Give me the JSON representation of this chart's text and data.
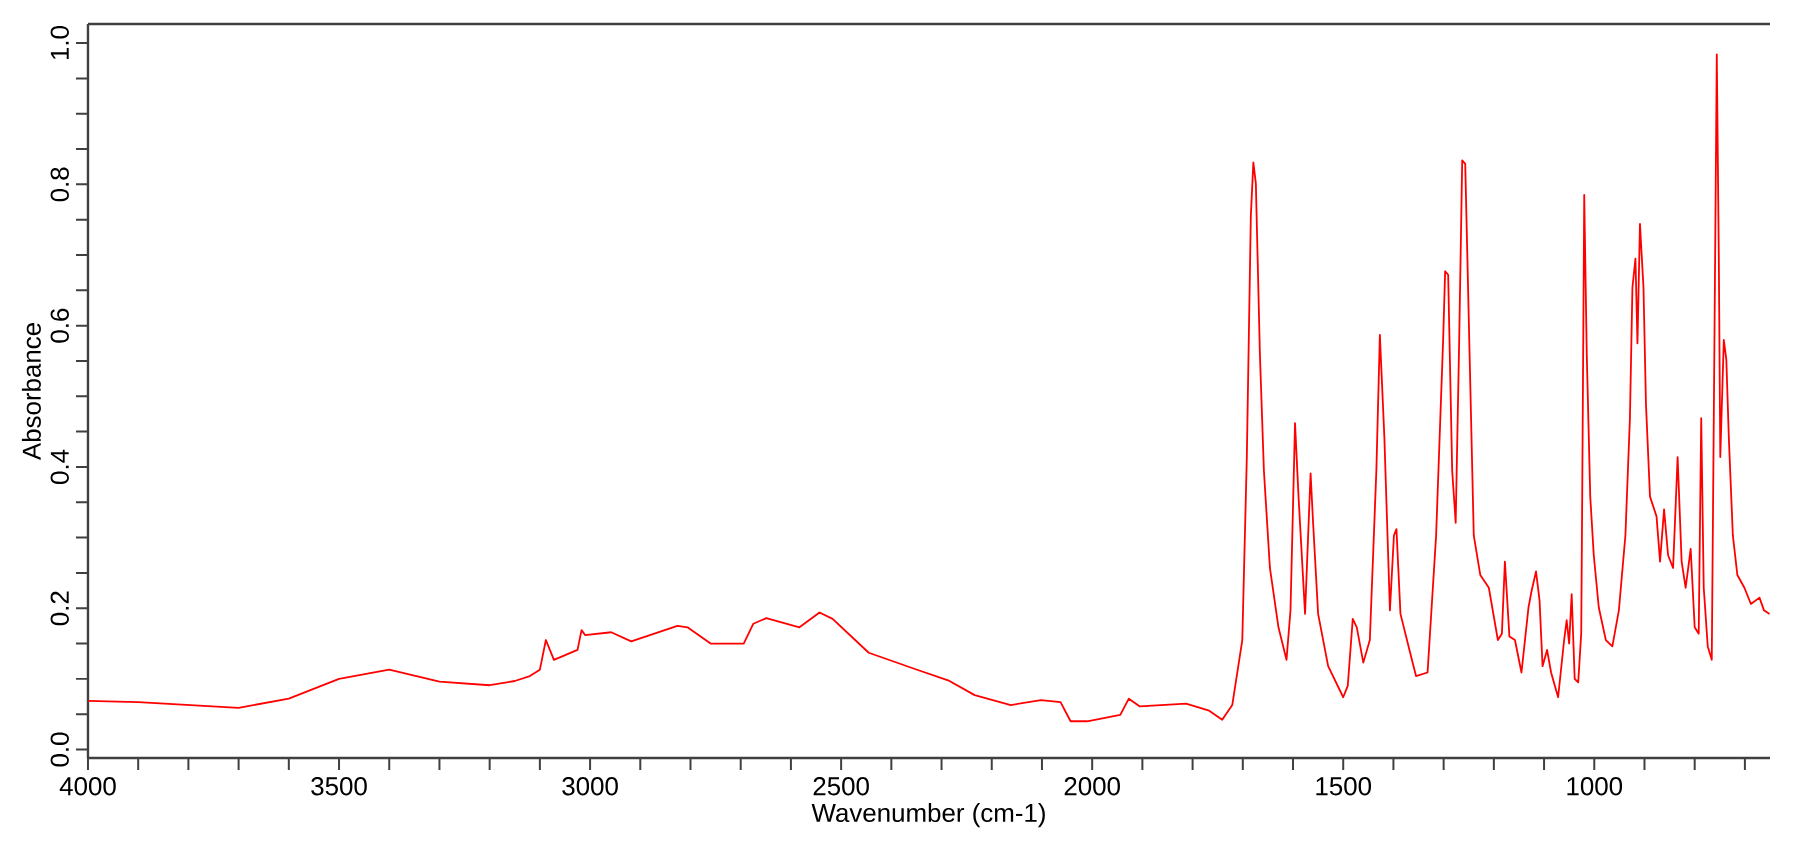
{
  "chart_data": {
    "type": "line",
    "xlabel": "Wavenumber (cm-1)",
    "ylabel": "Absorbance",
    "xlim": [
      4000,
      650
    ],
    "ylim": [
      -0.012,
      1.027
    ],
    "xticks": [
      4000,
      3500,
      3000,
      2500,
      2000,
      1500,
      1000,
      {
        "value": 3900,
        "label": null
      },
      {
        "value": 3800,
        "label": null
      },
      {
        "value": 3700,
        "label": null
      },
      {
        "value": 3600,
        "label": null
      },
      {
        "value": 3400,
        "label": null
      },
      {
        "value": 3300,
        "label": null
      },
      {
        "value": 3200,
        "label": null
      },
      {
        "value": 3100,
        "label": null
      },
      {
        "value": 2900,
        "label": null
      },
      {
        "value": 2800,
        "label": null
      },
      {
        "value": 2700,
        "label": null
      },
      {
        "value": 2600,
        "label": null
      },
      {
        "value": 2400,
        "label": null
      },
      {
        "value": 2300,
        "label": null
      },
      {
        "value": 2200,
        "label": null
      },
      {
        "value": 2100,
        "label": null
      },
      {
        "value": 1900,
        "label": null
      },
      {
        "value": 1800,
        "label": null
      },
      {
        "value": 1700,
        "label": null
      },
      {
        "value": 1600,
        "label": null
      },
      {
        "value": 1400,
        "label": null
      },
      {
        "value": 1300,
        "label": null
      },
      {
        "value": 1200,
        "label": null
      },
      {
        "value": 1100,
        "label": null
      },
      {
        "value": 900,
        "label": null
      },
      {
        "value": 800,
        "label": null
      },
      {
        "value": 700,
        "label": null
      }
    ],
    "yticks": [
      {
        "value": 0,
        "label": "0.0"
      },
      0.2,
      0.4,
      0.6,
      0.8,
      {
        "value": 1,
        "label": "1.0"
      },
      {
        "value": 0.1,
        "label": null
      },
      {
        "value": 0.3,
        "label": null
      },
      {
        "value": 0.5,
        "label": null
      },
      {
        "value": 0.7,
        "label": null
      },
      {
        "value": 0.9,
        "label": null
      },
      {
        "value": 0.05,
        "label": null
      },
      {
        "value": 0.15,
        "label": null
      },
      {
        "value": 0.25,
        "label": null
      },
      {
        "value": 0.35,
        "label": null
      },
      {
        "value": 0.45,
        "label": null
      },
      {
        "value": 0.55,
        "label": null
      },
      {
        "value": 0.65,
        "label": null
      },
      {
        "value": 0.75,
        "label": null
      },
      {
        "value": 0.85,
        "label": null
      },
      {
        "value": 0.95,
        "label": null
      }
    ],
    "grid": false,
    "marker": "none",
    "line_style": "solid",
    "x": [
      4000,
      3900,
      3800,
      3700,
      3600,
      3500,
      3400,
      3300,
      3200,
      3150,
      3120,
      3100,
      3088,
      3072,
      3025,
      3017,
      3010,
      2958,
      2918,
      2826,
      2806,
      2760,
      2694,
      2675,
      2649,
      2583,
      2543,
      2517,
      2445,
      2353,
      2287,
      2234,
      2162,
      2102,
      2063,
      2043,
      2010,
      1944,
      1927,
      1905,
      1813,
      1767,
      1741,
      1721,
      1701,
      1692,
      1684,
      1679,
      1674,
      1666,
      1658,
      1646,
      1629,
      1613,
      1605,
      1596,
      1589,
      1576,
      1565,
      1560,
      1550,
      1530,
      1500,
      1491,
      1481,
      1473,
      1460,
      1447,
      1434,
      1427,
      1418,
      1407,
      1399,
      1394,
      1386,
      1365,
      1355,
      1332,
      1315,
      1301,
      1297,
      1291,
      1283,
      1276,
      1269,
      1263,
      1257,
      1249,
      1240,
      1227,
      1210,
      1192,
      1184,
      1178,
      1169,
      1158,
      1145,
      1131,
      1125,
      1116,
      1109,
      1103,
      1094,
      1086,
      1072,
      1060,
      1055,
      1050,
      1045,
      1039,
      1032,
      1026,
      1024,
      1020,
      1015,
      1008,
      1001,
      991,
      977,
      964,
      951,
      938,
      929,
      924,
      918,
      914,
      909,
      902,
      897,
      889,
      876,
      869,
      861,
      853,
      843,
      834,
      826,
      818,
      808,
      800,
      792,
      787,
      782,
      774,
      766,
      760,
      756,
      752,
      749,
      742,
      737,
      732,
      724,
      715,
      701,
      688,
      671,
      662,
      651
    ],
    "series": [
      {
        "color": "#ff0000",
        "values": [
          0.069,
          0.067,
          0.063,
          0.059,
          0.072,
          0.1,
          0.113,
          0.096,
          0.091,
          0.097,
          0.104,
          0.113,
          0.155,
          0.127,
          0.141,
          0.169,
          0.162,
          0.166,
          0.153,
          0.175,
          0.173,
          0.15,
          0.15,
          0.178,
          0.186,
          0.173,
          0.194,
          0.185,
          0.137,
          0.114,
          0.098,
          0.077,
          0.063,
          0.07,
          0.067,
          0.04,
          0.04,
          0.049,
          0.072,
          0.061,
          0.065,
          0.055,
          0.042,
          0.063,
          0.155,
          0.414,
          0.755,
          0.831,
          0.801,
          0.561,
          0.395,
          0.257,
          0.173,
          0.127,
          0.197,
          0.462,
          0.358,
          0.192,
          0.391,
          0.321,
          0.192,
          0.118,
          0.074,
          0.09,
          0.185,
          0.173,
          0.123,
          0.155,
          0.395,
          0.587,
          0.441,
          0.197,
          0.303,
          0.312,
          0.192,
          0.132,
          0.104,
          0.109,
          0.303,
          0.58,
          0.677,
          0.672,
          0.395,
          0.321,
          0.58,
          0.834,
          0.829,
          0.58,
          0.303,
          0.247,
          0.229,
          0.155,
          0.164,
          0.266,
          0.16,
          0.155,
          0.109,
          0.201,
          0.224,
          0.252,
          0.211,
          0.118,
          0.141,
          0.109,
          0.074,
          0.155,
          0.183,
          0.15,
          0.22,
          0.1,
          0.095,
          0.164,
          0.358,
          0.785,
          0.561,
          0.358,
          0.275,
          0.201,
          0.155,
          0.146,
          0.197,
          0.303,
          0.469,
          0.654,
          0.695,
          0.575,
          0.744,
          0.654,
          0.488,
          0.358,
          0.33,
          0.266,
          0.34,
          0.275,
          0.257,
          0.414,
          0.266,
          0.229,
          0.284,
          0.173,
          0.164,
          0.469,
          0.229,
          0.146,
          0.127,
          0.635,
          0.984,
          0.7,
          0.414,
          0.58,
          0.552,
          0.441,
          0.303,
          0.247,
          0.229,
          0.206,
          0.215,
          0.197,
          0.192
        ]
      }
    ]
  }
}
